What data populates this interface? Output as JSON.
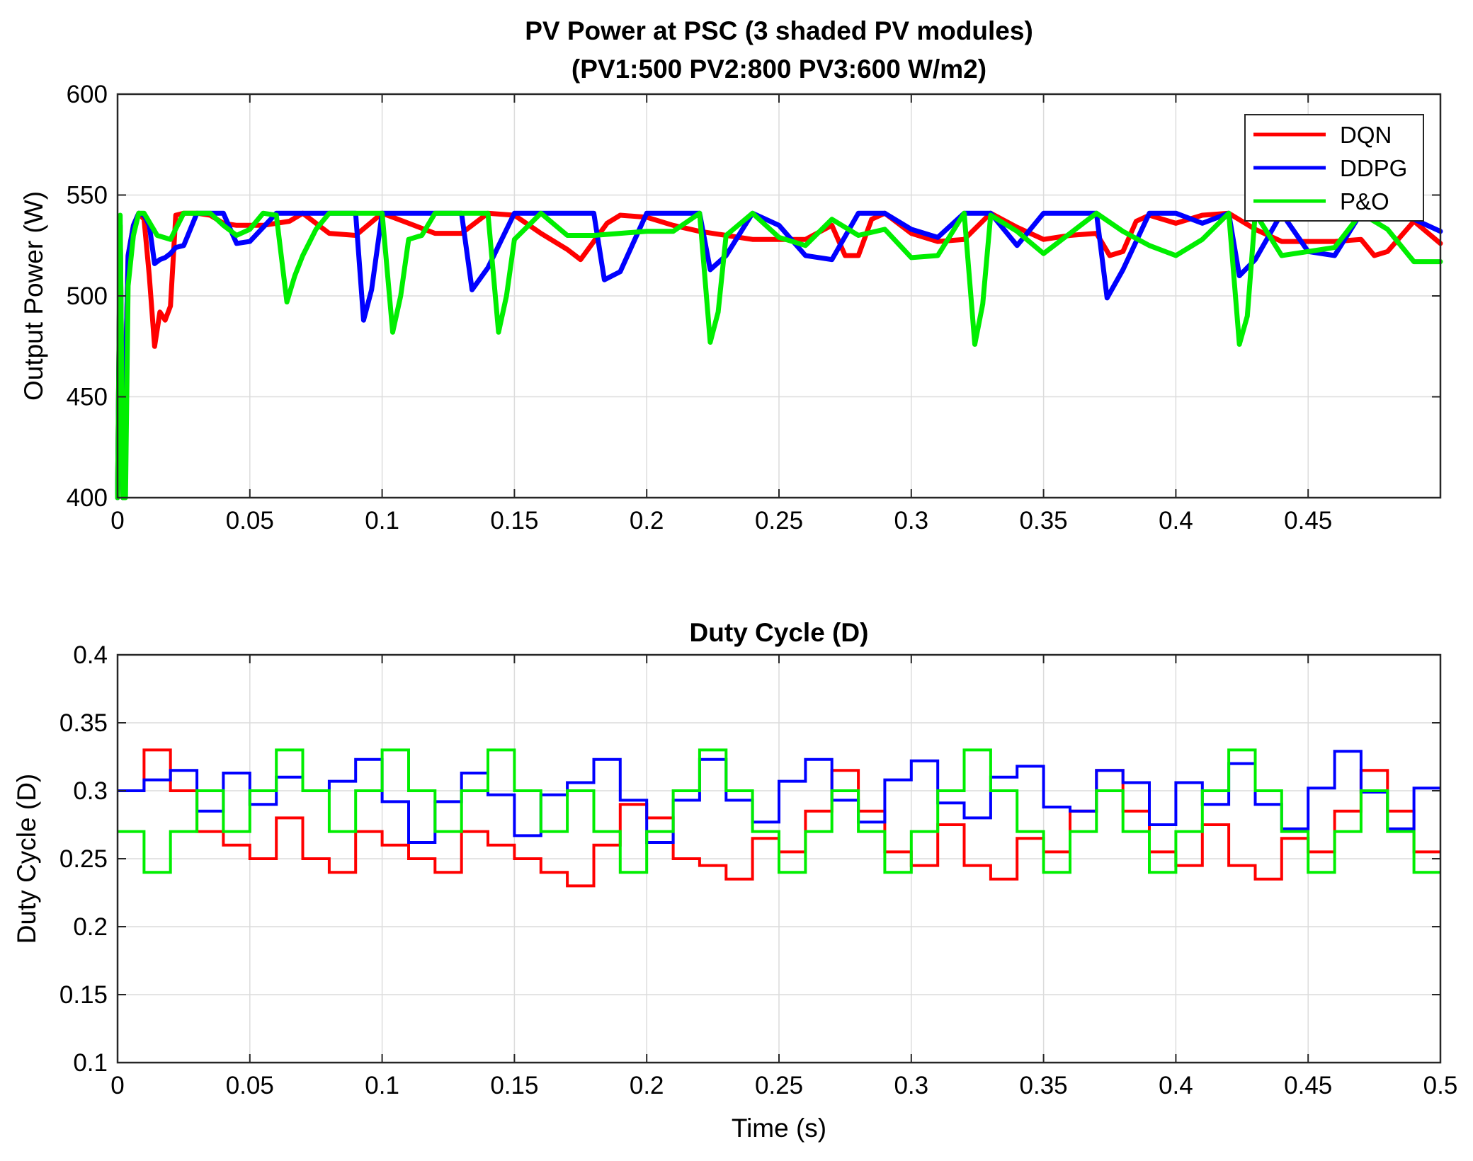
{
  "chart_data": [
    {
      "type": "line",
      "title": "PV Power at PSC (3 shaded PV modules)",
      "subtitle": "(PV1:500 PV2:800 PV3:600 W/m2)",
      "xlabel": "",
      "ylabel": "Output Power (W)",
      "xlim": [
        0,
        0.5
      ],
      "ylim": [
        400,
        600
      ],
      "xticks": [
        0,
        0.05,
        0.1,
        0.15,
        0.2,
        0.25,
        0.3,
        0.35,
        0.4,
        0.45
      ],
      "xtick_labels": [
        "0",
        "0.05",
        "0.1",
        "0.15",
        "0.2",
        "0.25",
        "0.3",
        "0.35",
        "0.4",
        "0.45"
      ],
      "yticks": [
        400,
        450,
        500,
        550,
        600
      ],
      "ytick_labels": [
        "400",
        "450",
        "500",
        "550",
        "600"
      ],
      "grid": true,
      "legend": {
        "position": "top-right",
        "entries": [
          "DQN",
          "DDPG",
          "P&O"
        ]
      },
      "series": [
        {
          "name": "DQN",
          "color": "#ff0000",
          "x": [
            0,
            0.001,
            0.002,
            0.004,
            0.006,
            0.008,
            0.01,
            0.012,
            0.014,
            0.016,
            0.018,
            0.02,
            0.022,
            0.025,
            0.03,
            0.035,
            0.04,
            0.045,
            0.05,
            0.055,
            0.06,
            0.065,
            0.07,
            0.08,
            0.09,
            0.1,
            0.11,
            0.12,
            0.13,
            0.14,
            0.15,
            0.16,
            0.17,
            0.175,
            0.18,
            0.185,
            0.19,
            0.2,
            0.21,
            0.22,
            0.23,
            0.24,
            0.25,
            0.26,
            0.27,
            0.275,
            0.28,
            0.285,
            0.29,
            0.3,
            0.31,
            0.32,
            0.33,
            0.34,
            0.35,
            0.36,
            0.37,
            0.375,
            0.38,
            0.385,
            0.39,
            0.4,
            0.41,
            0.42,
            0.43,
            0.44,
            0.45,
            0.46,
            0.47,
            0.475,
            0.48,
            0.49,
            0.5
          ],
          "y": [
            400,
            535,
            400,
            520,
            535,
            541,
            538,
            510,
            475,
            492,
            488,
            495,
            540,
            541,
            541,
            540,
            536,
            535,
            535,
            535,
            536,
            537,
            541,
            531,
            530,
            541,
            536,
            531,
            531,
            541,
            540,
            531,
            523,
            518,
            527,
            536,
            540,
            539,
            535,
            532,
            530,
            528,
            528,
            528,
            535,
            520,
            520,
            538,
            541,
            531,
            527,
            528,
            541,
            534,
            528,
            530,
            531,
            520,
            522,
            537,
            540,
            536,
            540,
            541,
            533,
            527,
            527,
            527,
            528,
            520,
            522,
            537,
            526
          ]
        },
        {
          "name": "DDPG",
          "color": "#0000ff",
          "x": [
            0,
            0.001,
            0.002,
            0.004,
            0.006,
            0.008,
            0.01,
            0.012,
            0.014,
            0.016,
            0.018,
            0.02,
            0.022,
            0.025,
            0.03,
            0.035,
            0.04,
            0.045,
            0.05,
            0.06,
            0.07,
            0.08,
            0.09,
            0.093,
            0.096,
            0.1,
            0.11,
            0.12,
            0.13,
            0.134,
            0.14,
            0.15,
            0.16,
            0.17,
            0.18,
            0.184,
            0.19,
            0.2,
            0.21,
            0.22,
            0.224,
            0.23,
            0.24,
            0.25,
            0.26,
            0.27,
            0.28,
            0.29,
            0.3,
            0.31,
            0.32,
            0.33,
            0.34,
            0.35,
            0.36,
            0.37,
            0.374,
            0.38,
            0.39,
            0.4,
            0.41,
            0.42,
            0.424,
            0.43,
            0.44,
            0.45,
            0.46,
            0.47,
            0.48,
            0.49,
            0.5
          ],
          "y": [
            400,
            535,
            400,
            520,
            535,
            541,
            540,
            535,
            516,
            518,
            519,
            521,
            524,
            525,
            541,
            541,
            541,
            526,
            527,
            541,
            541,
            541,
            541,
            488,
            503,
            541,
            541,
            541,
            541,
            503,
            514,
            541,
            541,
            541,
            541,
            508,
            512,
            541,
            541,
            541,
            513,
            520,
            541,
            535,
            520,
            518,
            541,
            541,
            533,
            529,
            541,
            541,
            525,
            541,
            541,
            541,
            499,
            513,
            541,
            541,
            536,
            541,
            510,
            518,
            541,
            522,
            520,
            541,
            541,
            538,
            532
          ]
        },
        {
          "name": "P&O",
          "color": "#00ee00",
          "x": [
            0,
            0.001,
            0.002,
            0.003,
            0.004,
            0.006,
            0.008,
            0.01,
            0.015,
            0.02,
            0.025,
            0.03,
            0.035,
            0.04,
            0.045,
            0.05,
            0.055,
            0.06,
            0.064,
            0.067,
            0.07,
            0.075,
            0.08,
            0.09,
            0.1,
            0.104,
            0.107,
            0.11,
            0.115,
            0.12,
            0.13,
            0.14,
            0.144,
            0.147,
            0.15,
            0.16,
            0.17,
            0.18,
            0.19,
            0.2,
            0.21,
            0.22,
            0.224,
            0.227,
            0.23,
            0.24,
            0.25,
            0.26,
            0.27,
            0.28,
            0.29,
            0.3,
            0.31,
            0.32,
            0.324,
            0.327,
            0.33,
            0.34,
            0.35,
            0.36,
            0.37,
            0.38,
            0.39,
            0.4,
            0.41,
            0.42,
            0.424,
            0.427,
            0.43,
            0.44,
            0.45,
            0.46,
            0.47,
            0.48,
            0.49,
            0.5
          ],
          "y": [
            400,
            540,
            400,
            400,
            505,
            530,
            541,
            541,
            530,
            528,
            541,
            541,
            541,
            535,
            530,
            533,
            541,
            540,
            497,
            510,
            520,
            533,
            541,
            541,
            541,
            482,
            500,
            528,
            530,
            541,
            541,
            541,
            482,
            500,
            528,
            541,
            530,
            530,
            531,
            532,
            532,
            541,
            477,
            492,
            530,
            541,
            529,
            525,
            538,
            530,
            533,
            519,
            520,
            541,
            476,
            496,
            540,
            532,
            521,
            531,
            541,
            532,
            525,
            520,
            528,
            541,
            476,
            490,
            541,
            520,
            522,
            524,
            541,
            533,
            517,
            517
          ]
        }
      ]
    },
    {
      "type": "line",
      "title": "Duty Cycle (D)",
      "xlabel": "Time (s)",
      "ylabel": "Duty Cycle (D)",
      "xlim": [
        0,
        0.5
      ],
      "ylim": [
        0.1,
        0.4
      ],
      "xticks": [
        0,
        0.05,
        0.1,
        0.15,
        0.2,
        0.25,
        0.3,
        0.35,
        0.4,
        0.45,
        0.5
      ],
      "xtick_labels": [
        "0",
        "0.05",
        "0.1",
        "0.15",
        "0.2",
        "0.25",
        "0.3",
        "0.35",
        "0.4",
        "0.45",
        "0.5"
      ],
      "yticks": [
        0.1,
        0.15,
        0.2,
        0.25,
        0.3,
        0.35,
        0.4
      ],
      "ytick_labels": [
        "0.1",
        "0.15",
        "0.2",
        "0.25",
        "0.3",
        "0.35",
        "0.4"
      ],
      "grid": true,
      "step_width": 0.01,
      "series": [
        {
          "name": "DQN",
          "color": "#ff0000",
          "values": [
            0.3,
            0.33,
            0.3,
            0.27,
            0.26,
            0.25,
            0.28,
            0.25,
            0.24,
            0.27,
            0.26,
            0.25,
            0.24,
            0.27,
            0.26,
            0.25,
            0.24,
            0.23,
            0.26,
            0.29,
            0.28,
            0.25,
            0.245,
            0.235,
            0.265,
            0.255,
            0.285,
            0.315,
            0.285,
            0.255,
            0.245,
            0.275,
            0.245,
            0.235,
            0.265,
            0.255,
            0.285,
            0.315,
            0.285,
            0.255,
            0.245,
            0.275,
            0.245,
            0.235,
            0.265,
            0.255,
            0.285,
            0.315,
            0.285,
            0.255
          ]
        },
        {
          "name": "DDPG",
          "color": "#0000ff",
          "values": [
            0.3,
            0.308,
            0.315,
            0.285,
            0.313,
            0.29,
            0.31,
            0.3,
            0.307,
            0.323,
            0.292,
            0.262,
            0.292,
            0.313,
            0.297,
            0.267,
            0.297,
            0.306,
            0.323,
            0.293,
            0.262,
            0.293,
            0.323,
            0.293,
            0.277,
            0.307,
            0.323,
            0.293,
            0.277,
            0.308,
            0.322,
            0.291,
            0.28,
            0.31,
            0.318,
            0.288,
            0.285,
            0.315,
            0.306,
            0.275,
            0.306,
            0.29,
            0.32,
            0.29,
            0.272,
            0.302,
            0.329,
            0.299,
            0.272,
            0.302
          ]
        },
        {
          "name": "P&O",
          "color": "#00ee00",
          "values": [
            0.27,
            0.24,
            0.27,
            0.3,
            0.27,
            0.3,
            0.33,
            0.3,
            0.27,
            0.3,
            0.33,
            0.3,
            0.27,
            0.3,
            0.33,
            0.3,
            0.27,
            0.3,
            0.27,
            0.24,
            0.27,
            0.3,
            0.33,
            0.3,
            0.27,
            0.24,
            0.27,
            0.3,
            0.27,
            0.24,
            0.27,
            0.3,
            0.33,
            0.3,
            0.27,
            0.24,
            0.27,
            0.3,
            0.27,
            0.24,
            0.27,
            0.3,
            0.33,
            0.3,
            0.27,
            0.24,
            0.27,
            0.3,
            0.27,
            0.24
          ]
        }
      ]
    }
  ]
}
